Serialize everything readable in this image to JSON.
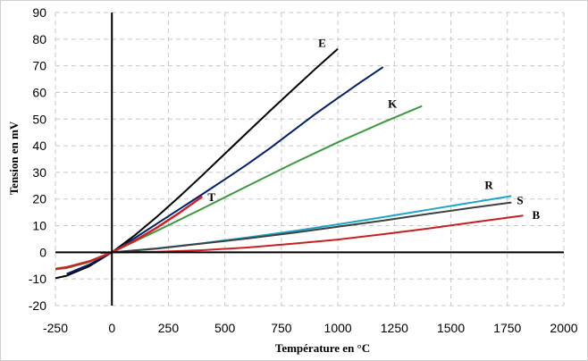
{
  "chart_data": {
    "type": "line",
    "xlabel": "Température en °C",
    "ylabel": "Tension en mV",
    "xlim": [
      -250,
      2000
    ],
    "ylim": [
      -20,
      90
    ],
    "xticks": [
      -250,
      0,
      250,
      500,
      750,
      1000,
      1250,
      1500,
      1750,
      2000
    ],
    "yticks": [
      -20,
      -10,
      0,
      10,
      20,
      30,
      40,
      50,
      60,
      70,
      80,
      90
    ],
    "grid": true,
    "legend": "none",
    "series": [
      {
        "name": "E",
        "color": "#000000",
        "x": [
          -250,
          -200,
          -100,
          0,
          100,
          200,
          300,
          400,
          500,
          600,
          700,
          800,
          900,
          1000
        ],
        "y": [
          -9.7,
          -8.8,
          -5.2,
          0,
          6.3,
          13.4,
          21.0,
          28.9,
          37.0,
          45.1,
          53.1,
          61.0,
          68.8,
          76.4
        ]
      },
      {
        "name": "",
        "color": "#001f6b",
        "x": [
          -200,
          -100,
          0,
          100,
          200,
          300,
          400,
          500,
          600,
          700,
          800,
          900,
          1000,
          1100,
          1200
        ],
        "y": [
          -8.1,
          -4.6,
          0,
          5.3,
          10.8,
          16.3,
          21.8,
          27.4,
          33.1,
          39.1,
          45.5,
          51.9,
          57.9,
          63.8,
          69.5
        ]
      },
      {
        "name": "K",
        "color": "#3a9b3a",
        "x": [
          -250,
          -200,
          -100,
          0,
          200,
          400,
          600,
          800,
          1000,
          1200,
          1372
        ],
        "y": [
          -6.4,
          -5.9,
          -3.6,
          0,
          8.1,
          16.4,
          24.9,
          33.3,
          41.3,
          48.8,
          54.9
        ]
      },
      {
        "name": "T",
        "color": "#cc2222",
        "x": [
          -250,
          -200,
          -100,
          0,
          100,
          200,
          300,
          400
        ],
        "y": [
          -6.2,
          -5.6,
          -3.4,
          0,
          4.3,
          9.3,
          14.9,
          20.9
        ]
      },
      {
        "name": "R",
        "color": "#1aa6c9",
        "x": [
          -50,
          0,
          200,
          400,
          600,
          800,
          1000,
          1200,
          1400,
          1600,
          1768
        ],
        "y": [
          -0.2,
          0,
          1.5,
          3.4,
          5.6,
          7.9,
          10.5,
          13.2,
          16.0,
          18.8,
          21.1
        ]
      },
      {
        "name": "S",
        "color": "#404040",
        "x": [
          -50,
          0,
          200,
          400,
          600,
          800,
          1000,
          1200,
          1400,
          1600,
          1768
        ],
        "y": [
          -0.2,
          0,
          1.4,
          3.3,
          5.2,
          7.3,
          9.6,
          11.9,
          14.4,
          16.8,
          18.7
        ]
      },
      {
        "name": "B",
        "color": "#c82020",
        "x": [
          0,
          200,
          400,
          600,
          800,
          1000,
          1200,
          1400,
          1600,
          1820
        ],
        "y": [
          0,
          0.2,
          0.8,
          1.8,
          3.2,
          4.8,
          6.8,
          8.9,
          11.3,
          13.8
        ]
      }
    ]
  }
}
